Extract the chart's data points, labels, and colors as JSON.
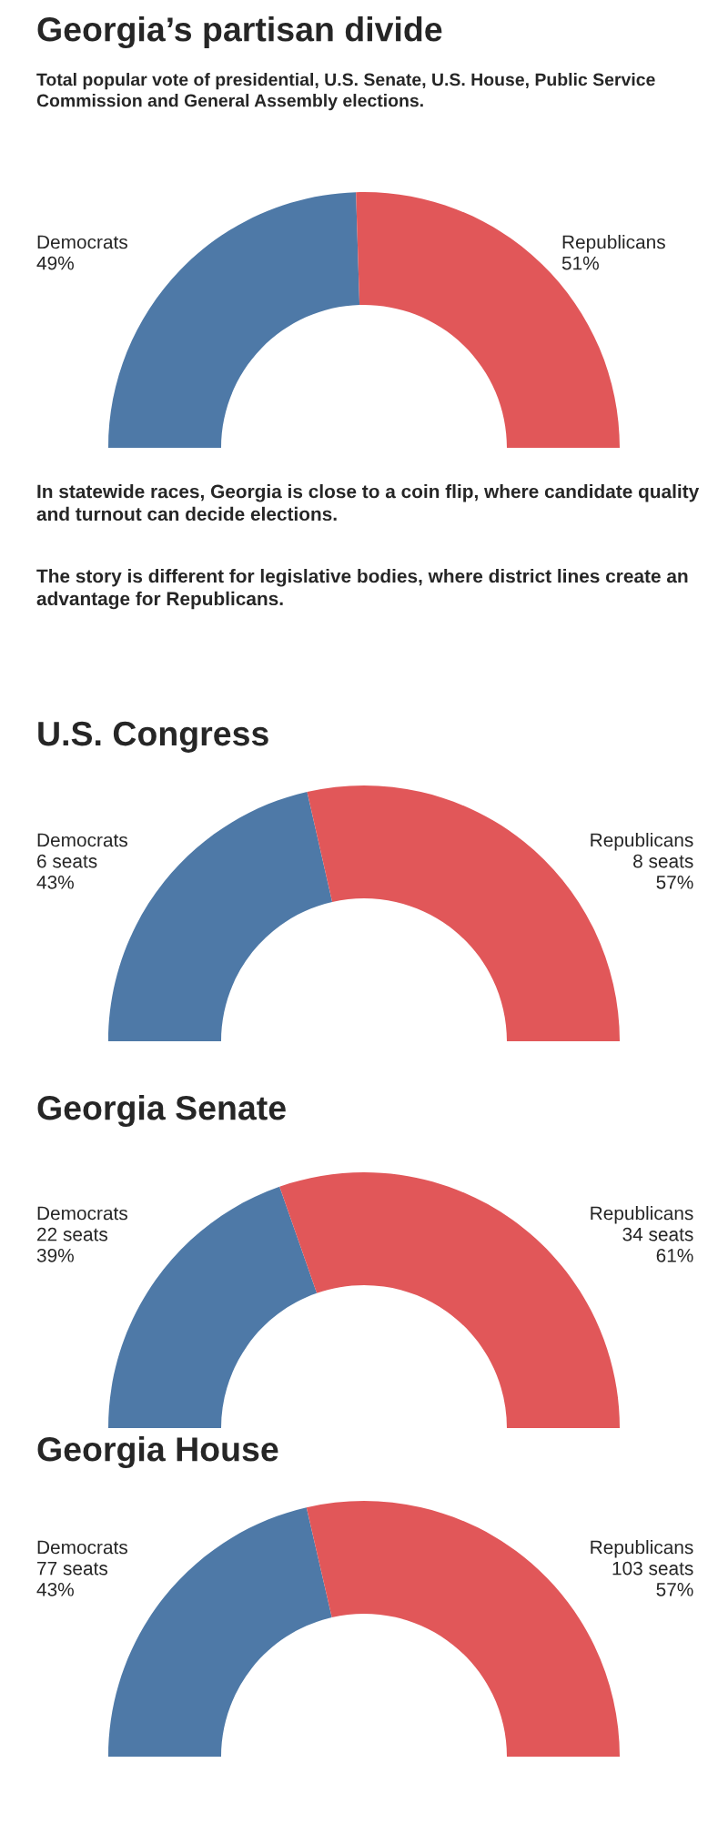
{
  "chart_data": [
    {
      "type": "donut",
      "title": "Georgia’s partisan divide",
      "subtitle": "Total popular vote of presidential, U.S. Senate, U.S. House, Public Service Commission and General Assembly elections.",
      "categories": [
        "Democrats",
        "Republicans"
      ],
      "values": [
        49,
        51
      ],
      "value_labels": [
        "49%",
        "51%"
      ],
      "colors": [
        "#4e79a7",
        "#e15759"
      ],
      "annotations": [
        "In statewide races, Georgia is close to a coin flip, where candidate quality and turnout can decide elections.",
        "The story is different for legislative bodies, where district lines create an advantage for Republicans."
      ]
    },
    {
      "type": "donut",
      "title": "U.S. Congress",
      "categories": [
        "Democrats",
        "Republicans"
      ],
      "values": [
        6,
        8
      ],
      "value_labels": [
        "6 seats\n43%",
        "8 seats\n57%"
      ],
      "colors": [
        "#4e79a7",
        "#e15759"
      ]
    },
    {
      "type": "donut",
      "title": "Georgia Senate",
      "categories": [
        "Democrats",
        "Republicans"
      ],
      "values": [
        22,
        34
      ],
      "value_labels": [
        "22 seats\n39%",
        "34 seats\n61%"
      ],
      "colors": [
        "#4e79a7",
        "#e15759"
      ]
    },
    {
      "type": "donut",
      "title": "Georgia House",
      "categories": [
        "Democrats",
        "Republicans"
      ],
      "values": [
        77,
        103
      ],
      "value_labels": [
        "77 seats\n43%",
        "103 seats\n57%"
      ],
      "colors": [
        "#4e79a7",
        "#e15759"
      ]
    }
  ]
}
